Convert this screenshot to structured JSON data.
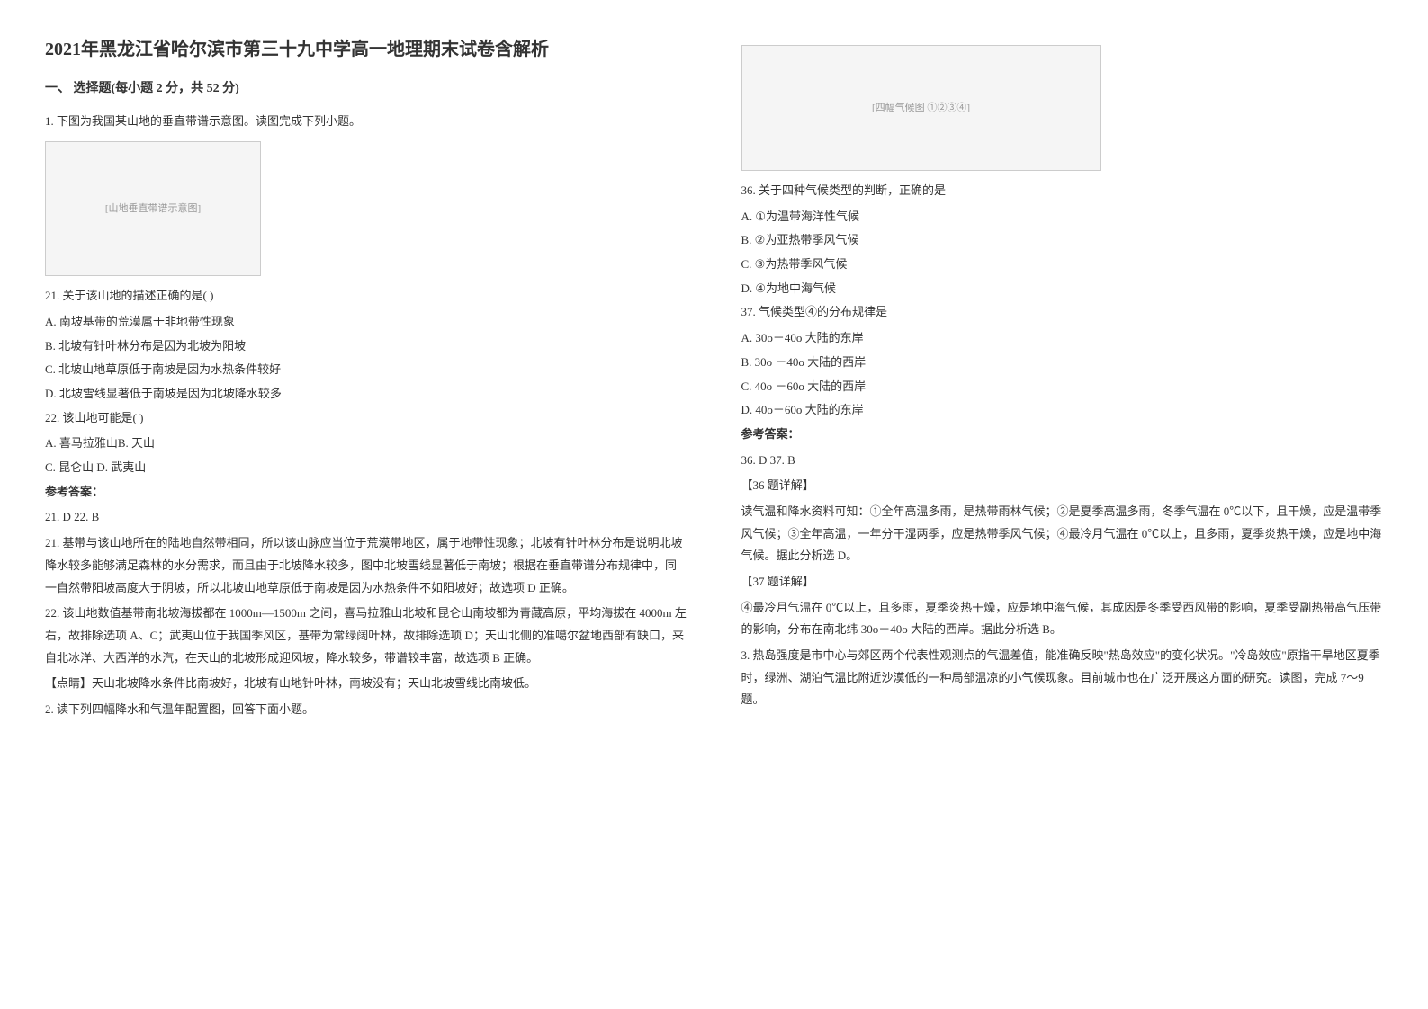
{
  "title": "2021年黑龙江省哈尔滨市第三十九中学高一地理期末试卷含解析",
  "section1": {
    "heading": "一、 选择题(每小题 2 分，共 52 分)",
    "q1_stem": "1. 下图为我国某山地的垂直带谱示意图。读图完成下列小题。",
    "q21_stem": "21.  关于该山地的描述正确的是(                )",
    "q21_options": [
      "A.  南坡基带的荒漠属于非地带性现象",
      "B.  北坡有针叶林分布是因为北坡为阳坡",
      "C.  北坡山地草原低于南坡是因为水热条件较好",
      "D.  北坡雪线显著低于南坡是因为北坡降水较多"
    ],
    "q22_stem": "22.  该山地可能是(              )",
    "q22_options": [
      "A.  喜马拉雅山B.  天山",
      "C.  昆仑山    D.  武夷山"
    ],
    "answer_label": "参考答案：",
    "answer_21_22": "21. D        22. B",
    "explain_21": "21. 基带与该山地所在的陆地自然带相同，所以该山脉应当位于荒漠带地区，属于地带性现象；北坡有针叶林分布是说明北坡降水较多能够满足森林的水分需求，而且由于北坡降水较多，图中北坡雪线显著低于南坡；根据在垂直带谱分布规律中，同一自然带阳坡高度大于阴坡，所以北坡山地草原低于南坡是因为水热条件不如阳坡好；故选项 D 正确。",
    "explain_22": "22. 该山地数值基带南北坡海拔都在 1000m—1500m 之间，喜马拉雅山北坡和昆仑山南坡都为青藏高原，平均海拔在 4000m 左右，故排除选项 A、C；武夷山位于我国季风区，基带为常绿阔叶林，故排除选项 D；天山北侧的准噶尔盆地西部有缺口，来自北冰洋、大西洋的水汽，在天山的北坡形成迎风坡，降水较多，带谱较丰富，故选项 B 正确。",
    "tip_21_22": "【点睛】天山北坡降水条件比南坡好，北坡有山地针叶林，南坡没有；天山北坡雪线比南坡低。",
    "q2_stem": "2. 读下列四幅降水和气温年配置图，回答下面小题。"
  },
  "section2": {
    "q36_stem": "36. 关于四种气候类型的判断，正确的是",
    "q36_options": [
      "A. ①为温带海洋性气候",
      "B. ②为亚热带季风气候",
      "C. ③为热带季风气候",
      "D. ④为地中海气候"
    ],
    "q37_stem": "37. 气候类型④的分布规律是",
    "q37_options": [
      "A. 30o－40o 大陆的东岸",
      "B. 30o －40o 大陆的西岸",
      "C. 40o －60o 大陆的西岸",
      "D. 40o－60o 大陆的东岸"
    ],
    "answer_label": "参考答案：",
    "answer_36_37": "36. D   37. B",
    "explain_36_heading": "【36 题详解】",
    "explain_36": "读气温和降水资料可知：①全年高温多雨，是热带雨林气候；②是夏季高温多雨，冬季气温在 0℃以下，且干燥，应是温带季风气候；③全年高温，一年分干湿两季，应是热带季风气候；④最冷月气温在 0℃以上，且多雨，夏季炎热干燥，应是地中海气候。据此分析选 D。",
    "explain_37_heading": "【37 题详解】",
    "explain_37": "④最冷月气温在 0℃以上，且多雨，夏季炎热干燥，应是地中海气候，其成因是冬季受西风带的影响，夏季受副热带高气压带的影响，分布在南北纬 30o－40o 大陆的西岸。据此分析选 B。",
    "q3_stem": "3. 热岛强度是市中心与郊区两个代表性观测点的气温差值，能准确反映\"热岛效应\"的变化状况。\"冷岛效应\"原指干旱地区夏季时，绿洲、湖泊气温比附近沙漠低的一种局部温凉的小气候现象。目前城市也在广泛开展这方面的研究。读图，完成 7～9 题。"
  },
  "images": {
    "mountain_alt": "[山地垂直带谱示意图]",
    "climate_alt": "[四幅气候图 ①②③④]"
  }
}
